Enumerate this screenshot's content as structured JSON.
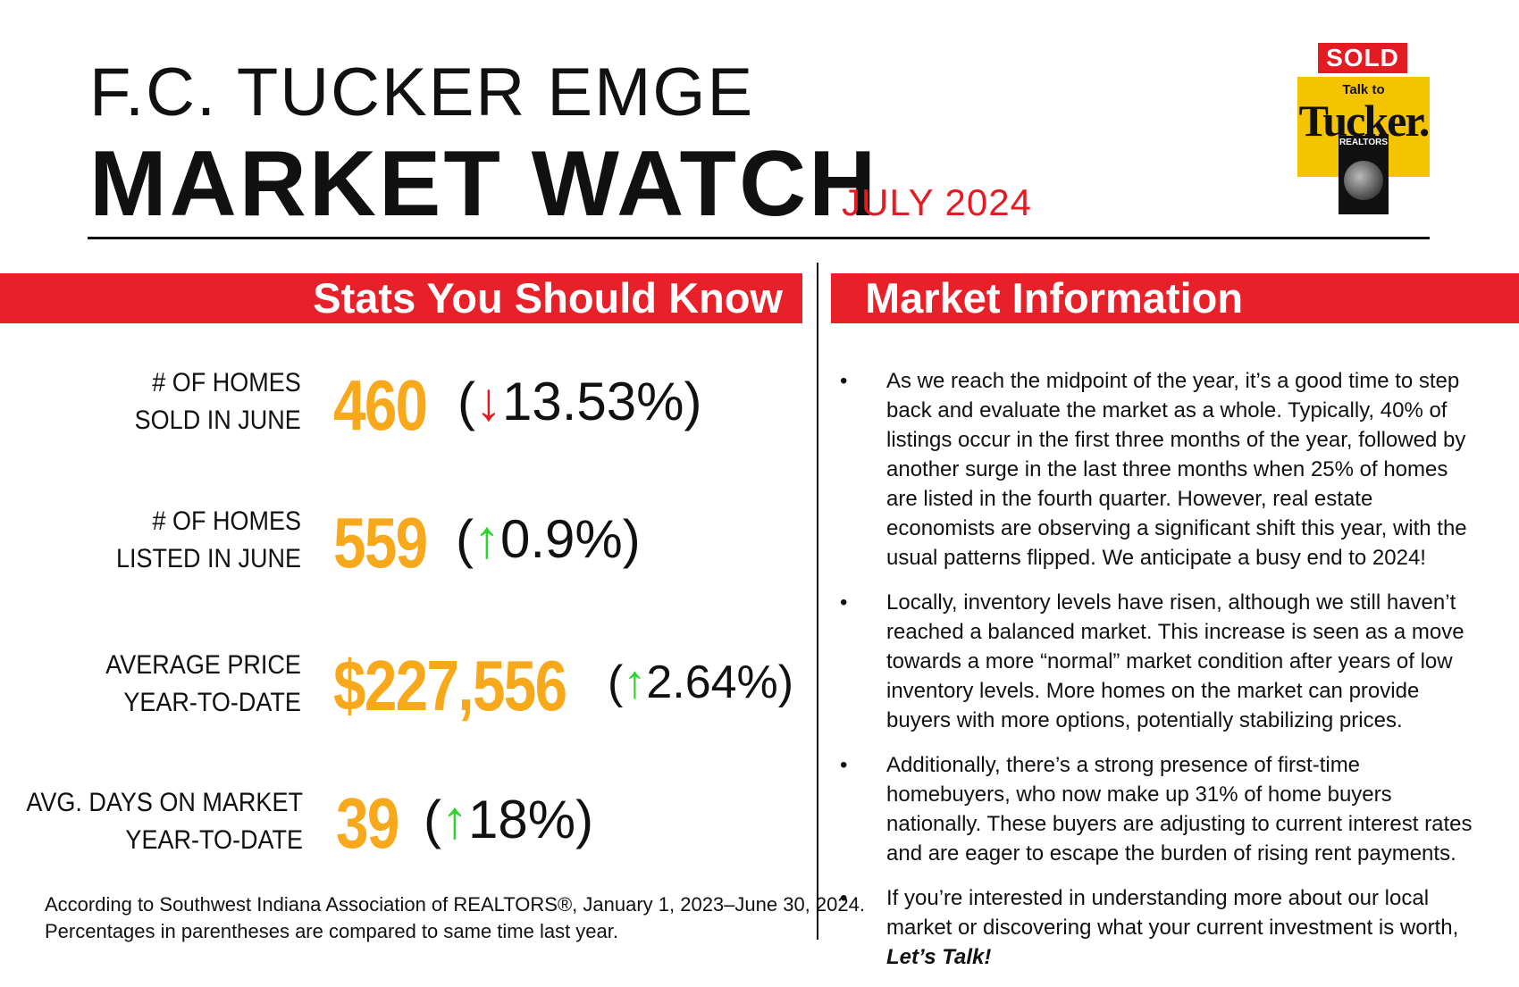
{
  "header": {
    "brand": "F.C. TUCKER EMGE",
    "title": "MARKET WATCH",
    "date": "JULY 2024"
  },
  "logo": {
    "sold": "SOLD",
    "talk_to": "Talk to",
    "tucker": "Tucker.",
    "realtors": "REALTORS"
  },
  "sections": {
    "stats_title": "Stats You Should Know",
    "market_title": "Market Information"
  },
  "stats": [
    {
      "label_line1": "# OF HOMES",
      "label_line2": "SOLD IN JUNE",
      "value": "460",
      "direction": "down",
      "arrow": "↓",
      "change": "13.53%"
    },
    {
      "label_line1": "# OF HOMES",
      "label_line2": "LISTED IN JUNE",
      "value": "559",
      "direction": "up",
      "arrow": "↑",
      "change": "0.9%"
    },
    {
      "label_line1": "AVERAGE PRICE",
      "label_line2": "YEAR-TO-DATE",
      "value": "$227,556",
      "direction": "up",
      "arrow": "↑",
      "change": "2.64%"
    },
    {
      "label_line1": "AVG. DAYS ON MARKET",
      "label_line2": "YEAR-TO-DATE",
      "value": "39",
      "direction": "up",
      "arrow": "↑",
      "change": "18%"
    }
  ],
  "footnote": {
    "line1": "According to Southwest Indiana Association of REALTORS®, January 1, 2023–June 30, 2024.",
    "line2": "Percentages in parentheses are compared to same time last year."
  },
  "market_info": {
    "bullet": "•",
    "items": [
      "As we reach the midpoint of the year, it’s a good time to step back and evaluate the market as a whole. Typically, 40% of listings occur in the first three months of the year, followed by another surge in the last three months when 25% of homes are listed in the fourth quarter. However, real estate economists are observing a significant shift this year, with the usual patterns flipped. We anticipate a busy end to 2024!",
      "Locally, inventory levels have risen, although we still haven’t reached a balanced market. This increase is seen as a move towards a more “normal” market condition after years of low inventory levels. More homes on the market can provide buyers with more options, potentially stabilizing prices.",
      "Additionally, there’s a strong presence of first-time homebuyers, who now make up 31% of home buyers nationally. These buyers are adjusting to current interest rates and are eager to escape the burden of rising rent payments.",
      "If you’re interested in understanding more about our local market or discovering what your current investment is worth,"
    ],
    "closing": "Let’s Talk!"
  },
  "colors": {
    "accent_red": "#e8202a",
    "stat_orange": "#f7a81b",
    "arrow_up_green": "#2ad62a",
    "arrow_down_red": "#e31b23"
  }
}
